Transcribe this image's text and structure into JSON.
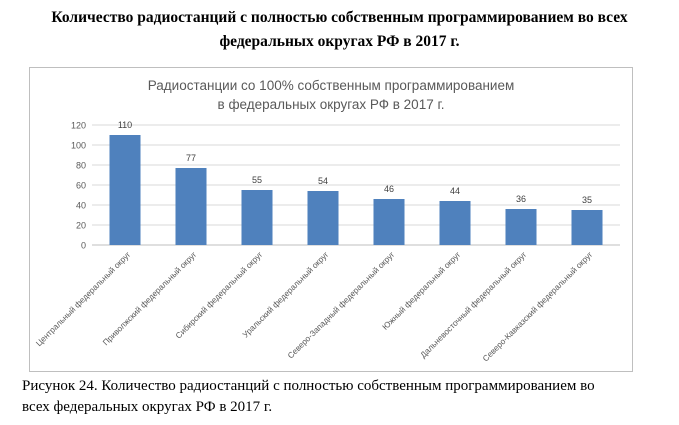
{
  "document": {
    "title_line1": "Количество радиостанций с полностью собственным программированием во всех",
    "title_line2": "федеральных округах РФ в 2017 г.",
    "caption_line1": "Рисунок 24. Количество радиостанций с полностью собственным программированием во",
    "caption_line2": "всех федеральных округах РФ в 2017 г."
  },
  "chart_data": {
    "type": "bar",
    "title_line1": "Радиостанции со 100% собственным программированием",
    "title_line2": "в федеральных округах РФ в 2017 г.",
    "categories": [
      "Центральный федеральный округ",
      "Приволжский федеральный округ",
      "Сибирский федеральный округ",
      "Уральский федеральный округ",
      "Северо-Западный федеральный округ",
      "Южный федеральный округ",
      "Дальневосточный федеральный округ",
      "Северо-Кавказский федеральный округ"
    ],
    "values": [
      110,
      77,
      55,
      54,
      46,
      44,
      36,
      35
    ],
    "ylim": [
      0,
      120
    ],
    "yticks": [
      0,
      20,
      40,
      60,
      80,
      100,
      120
    ],
    "grid": true,
    "legend": "none",
    "bar_color": "#4f81bd",
    "grid_color": "#d9d9d9",
    "text_color": "#595959"
  }
}
